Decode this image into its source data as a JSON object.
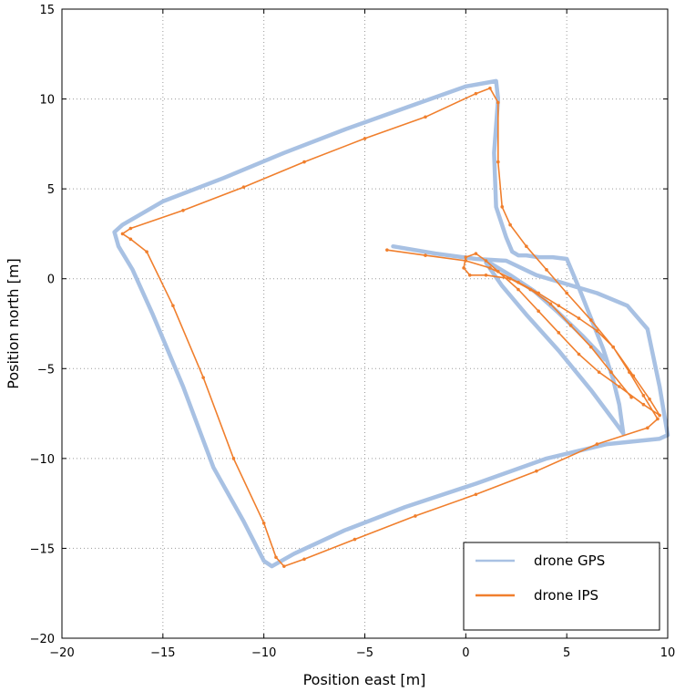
{
  "chart_data": {
    "type": "line",
    "title": "",
    "xlabel": "Position east [m]",
    "ylabel": "Position north [m]",
    "xlim": [
      -20,
      10
    ],
    "ylim": [
      -20,
      15
    ],
    "xticks": [
      -20,
      -15,
      -10,
      -5,
      0,
      5,
      10
    ],
    "yticks": [
      -20,
      -15,
      -10,
      -5,
      0,
      5,
      10,
      15
    ],
    "x_tick_labels": [
      "−20",
      "−15",
      "−10",
      "−5",
      "0",
      "5",
      "10"
    ],
    "y_tick_labels": [
      "−20",
      "−15",
      "−10",
      "−5",
      "0",
      "5",
      "10",
      "15"
    ],
    "grid": true,
    "legend_position": "bottom-right",
    "series": [
      {
        "name": "drone GPS",
        "color": "#a8c1e3",
        "x": [
          -3.6,
          -1.5,
          0.5,
          2.0,
          3.5,
          5.0,
          6.5,
          8.0,
          9.0,
          9.6,
          10.0,
          9.6,
          7.0,
          4.0,
          0.5,
          -3.0,
          -6.0,
          -8.5,
          -9.6,
          -10.0,
          -11.0,
          -12.5,
          -14.0,
          -15.5,
          -16.5,
          -17.2,
          -17.4,
          -17.0,
          -15.0,
          -12.0,
          -9.0,
          -6.0,
          -3.0,
          0.0,
          1.5,
          1.6,
          1.4,
          1.5,
          2.0,
          2.3,
          2.6,
          3.0,
          3.6,
          4.3,
          5.0,
          5.6,
          6.2,
          6.8,
          7.3,
          7.6,
          7.8,
          7.4,
          6.2,
          4.6,
          3.0,
          1.8,
          1.3,
          1.0,
          1.3,
          2.2,
          3.4,
          4.6,
          5.8,
          6.9
        ],
        "y": [
          1.8,
          1.4,
          1.1,
          1.0,
          0.2,
          -0.3,
          -0.8,
          -1.5,
          -2.8,
          -6.0,
          -8.7,
          -8.9,
          -9.2,
          -10.0,
          -11.4,
          -12.7,
          -14.0,
          -15.3,
          -16.0,
          -15.7,
          -13.5,
          -10.5,
          -6.0,
          -2.0,
          0.5,
          1.8,
          2.6,
          3.0,
          4.3,
          5.6,
          7.0,
          8.3,
          9.5,
          10.7,
          11.0,
          10.0,
          7.0,
          4.0,
          2.3,
          1.5,
          1.3,
          1.3,
          1.2,
          1.2,
          1.1,
          -0.5,
          -2.2,
          -3.9,
          -5.6,
          -7.0,
          -8.6,
          -8.0,
          -6.2,
          -4.0,
          -2.0,
          -0.4,
          0.4,
          0.9,
          0.8,
          0.2,
          -0.7,
          -1.9,
          -3.2,
          -4.5
        ]
      },
      {
        "name": "drone IPS",
        "color": "#f07f2d",
        "x": [
          -3.9,
          -2.0,
          0.0,
          1.2,
          2.6,
          3.6,
          4.6,
          5.6,
          6.5,
          7.3,
          8.1,
          8.8,
          9.5,
          9.0,
          6.5,
          3.5,
          0.5,
          -2.5,
          -5.5,
          -8.0,
          -9.0,
          -9.4,
          -10.0,
          -11.5,
          -13.0,
          -14.5,
          -15.8,
          -16.6,
          -17.0,
          -16.6,
          -14.0,
          -11.0,
          -8.0,
          -5.0,
          -2.0,
          0.5,
          1.2,
          1.6,
          1.6,
          1.8,
          2.2,
          3.0,
          4.0,
          5.0,
          6.2,
          7.3,
          8.3,
          9.1,
          9.6,
          8.8,
          7.6,
          6.6,
          5.6,
          4.6,
          3.6,
          2.6,
          1.6,
          1.0,
          0.5,
          0.0,
          -0.1,
          0.2,
          1.0,
          2.2,
          3.2,
          4.2,
          5.2,
          6.2,
          7.2,
          8.2
        ],
        "y": [
          1.6,
          1.3,
          1.0,
          0.6,
          -0.2,
          -0.8,
          -1.5,
          -2.2,
          -2.9,
          -3.8,
          -5.2,
          -6.5,
          -7.8,
          -8.3,
          -9.2,
          -10.7,
          -12.0,
          -13.2,
          -14.5,
          -15.6,
          -16.0,
          -15.5,
          -13.6,
          -10.0,
          -5.5,
          -1.5,
          1.5,
          2.2,
          2.5,
          2.8,
          3.8,
          5.1,
          6.5,
          7.8,
          9.0,
          10.3,
          10.6,
          9.8,
          6.5,
          4.0,
          3.0,
          1.8,
          0.5,
          -0.8,
          -2.3,
          -3.8,
          -5.4,
          -6.7,
          -7.6,
          -7.0,
          -6.0,
          -5.2,
          -4.2,
          -3.0,
          -1.8,
          -0.6,
          0.4,
          1.0,
          1.4,
          1.2,
          0.6,
          0.2,
          0.2,
          0.0,
          -0.6,
          -1.4,
          -2.6,
          -3.8,
          -5.2,
          -6.6
        ]
      }
    ]
  }
}
